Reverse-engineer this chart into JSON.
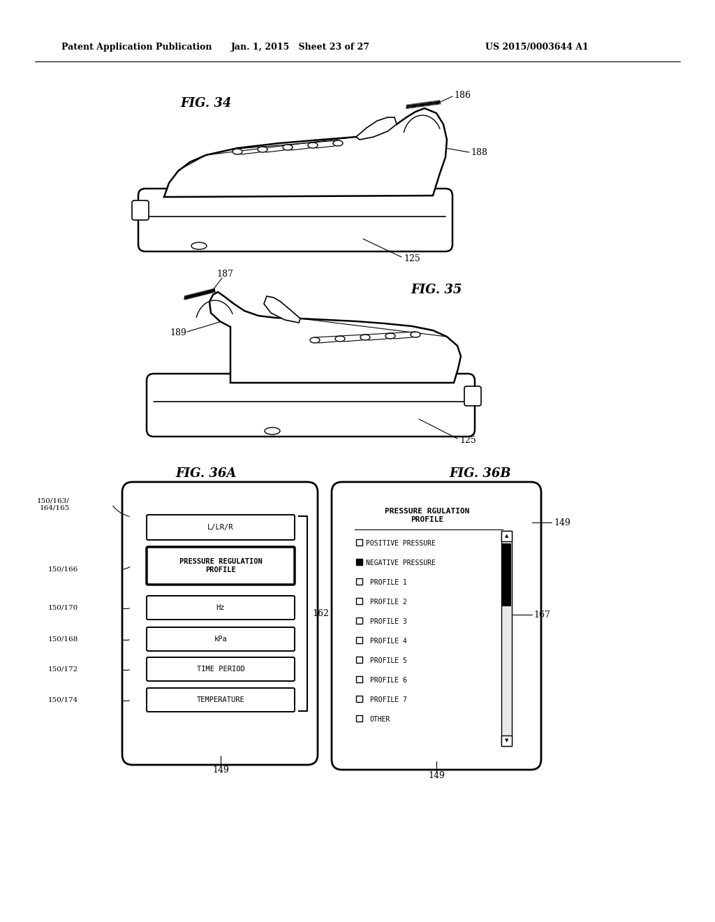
{
  "background_color": "#ffffff",
  "header_left": "Patent Application Publication",
  "header_mid": "Jan. 1, 2015   Sheet 23 of 27",
  "header_right": "US 2015/0003644 A1",
  "fig34_label": "FIG. 34",
  "fig35_label": "FIG. 35",
  "fig36a_label": "FIG. 36A",
  "fig36b_label": "FIG. 36B",
  "ref_186": "186",
  "ref_188": "188",
  "ref_125_1": "125",
  "ref_187": "187",
  "ref_189": "189",
  "ref_125_2": "125",
  "ref_150_163": "150/163/\n164/165",
  "ref_150_166": "150/166",
  "ref_150_170": "150/170",
  "ref_150_168": "150/168",
  "ref_150_172": "150/172",
  "ref_150_174": "150/174",
  "ref_162": "162",
  "ref_149_1": "149",
  "ref_149_2": "149",
  "ref_167": "167",
  "menu_items_36a": [
    "L/LR/R",
    "PRESSURE REGULATION\nPROFILE",
    "Hz",
    "kPa",
    "TIME PERIOD",
    "TEMPERATURE"
  ],
  "menu_36b_title": "PRESSURE RGULATION\nPROFILE",
  "menu_36b_items": [
    "POSITIVE PRESSURE",
    "NEGATIVE PRESSURE",
    "PROFILE 1",
    "PROFILE 2",
    "PROFILE 3",
    "PROFILE 4",
    "PROFILE 5",
    "PROFILE 6",
    "PROFILE 7",
    "OTHER"
  ]
}
